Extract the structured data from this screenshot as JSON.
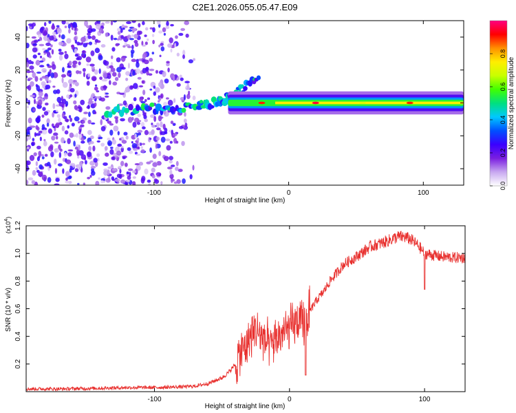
{
  "page": {
    "title": "C2E1.2026.055.05.47.E09"
  },
  "chart_data": [
    {
      "type": "heatmap",
      "title": "C2E1.2026.055.05.47.E09",
      "xlabel": "Height of straight line (km)",
      "ylabel": "Frequency (Hz)",
      "xlim": [
        -195,
        130
      ],
      "ylim": [
        -50,
        50
      ],
      "x_ticks": [
        -100,
        0,
        100
      ],
      "y_ticks": [
        -40,
        -20,
        0,
        20,
        40
      ],
      "colorbar": {
        "label": "Normalized spectral amplitude",
        "range": [
          0,
          1
        ],
        "ticks": [
          0.0,
          0.2,
          0.4,
          0.6,
          0.8
        ],
        "colors": [
          "#ffffff",
          "#c8a8f0",
          "#7a1fe0",
          "#3a00ff",
          "#0050ff",
          "#00c8ff",
          "#00e080",
          "#40ff00",
          "#c8ff00",
          "#ffee00",
          "#ff9000",
          "#ff0000",
          "#ff0080"
        ]
      },
      "features": [
        {
          "name": "noise field",
          "x_range": [
            -195,
            -70
          ],
          "y_range": [
            -50,
            50
          ],
          "amplitude": 0.15
        },
        {
          "name": "descending trace",
          "points": [
            [
              -135,
              -5
            ],
            [
              -110,
              -4
            ],
            [
              -90,
              -3
            ],
            [
              -70,
              -2
            ],
            [
              -55,
              0
            ],
            [
              -45,
              3
            ],
            [
              -35,
              8
            ],
            [
              -22,
              18
            ]
          ]
        },
        {
          "name": "carrier line",
          "x_range": [
            -45,
            130
          ],
          "y": 0,
          "amplitude": 0.6
        }
      ]
    },
    {
      "type": "line",
      "xlabel": "Height of straight line (km)",
      "ylabel": "SNR (10 * v/v)",
      "scale_label": "(x10",
      "scale_exponent": "4",
      "xlim": [
        -195,
        130
      ],
      "ylim": [
        0,
        1.2
      ],
      "x_ticks": [
        -100,
        0,
        100
      ],
      "y_ticks": [
        0.2,
        0.4,
        0.6,
        0.8,
        1.0,
        1.2
      ],
      "series": [
        {
          "name": "SNR",
          "color": "#e8302e",
          "x": [
            -195,
            -170,
            -140,
            -120,
            -100,
            -80,
            -70,
            -60,
            -50,
            -45,
            -40,
            -35,
            -30,
            -25,
            -20,
            -15,
            -10,
            -5,
            0,
            5,
            10,
            15,
            20,
            25,
            30,
            40,
            50,
            60,
            70,
            80,
            85,
            90,
            95,
            100,
            110,
            120,
            130
          ],
          "values": [
            0.02,
            0.02,
            0.025,
            0.03,
            0.03,
            0.035,
            0.04,
            0.06,
            0.1,
            0.14,
            0.2,
            0.3,
            0.38,
            0.45,
            0.4,
            0.32,
            0.38,
            0.42,
            0.45,
            0.5,
            0.48,
            0.58,
            0.66,
            0.72,
            0.8,
            0.92,
            0.98,
            1.05,
            1.08,
            1.12,
            1.12,
            1.1,
            1.06,
            1.0,
            0.98,
            0.97,
            0.97
          ]
        }
      ]
    }
  ]
}
